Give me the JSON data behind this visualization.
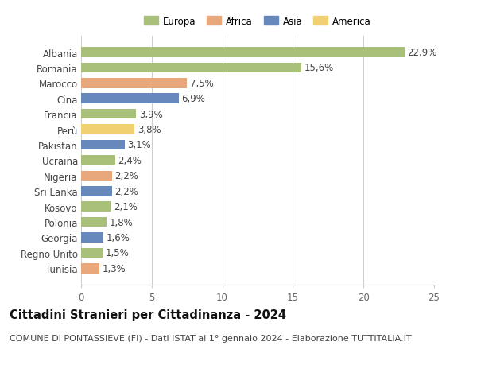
{
  "categories": [
    "Albania",
    "Romania",
    "Marocco",
    "Cina",
    "Francia",
    "Perù",
    "Pakistan",
    "Ucraina",
    "Nigeria",
    "Sri Lanka",
    "Kosovo",
    "Polonia",
    "Georgia",
    "Regno Unito",
    "Tunisia"
  ],
  "values": [
    22.9,
    15.6,
    7.5,
    6.9,
    3.9,
    3.8,
    3.1,
    2.4,
    2.2,
    2.2,
    2.1,
    1.8,
    1.6,
    1.5,
    1.3
  ],
  "labels": [
    "22,9%",
    "15,6%",
    "7,5%",
    "6,9%",
    "3,9%",
    "3,8%",
    "3,1%",
    "2,4%",
    "2,2%",
    "2,2%",
    "2,1%",
    "1,8%",
    "1,6%",
    "1,5%",
    "1,3%"
  ],
  "colors": [
    "#a8c07a",
    "#a8c07a",
    "#e8a87c",
    "#6688bb",
    "#a8c07a",
    "#f0d070",
    "#6688bb",
    "#a8c07a",
    "#e8a87c",
    "#6688bb",
    "#a8c07a",
    "#a8c07a",
    "#6688bb",
    "#a8c07a",
    "#e8a87c"
  ],
  "legend_labels": [
    "Europa",
    "Africa",
    "Asia",
    "America"
  ],
  "legend_colors": [
    "#a8c07a",
    "#e8a87c",
    "#6688bb",
    "#f0d070"
  ],
  "title": "Cittadini Stranieri per Cittadinanza - 2024",
  "subtitle": "COMUNE DI PONTASSIEVE (FI) - Dati ISTAT al 1° gennaio 2024 - Elaborazione TUTTITALIA.IT",
  "xlim": [
    0,
    25
  ],
  "xticks": [
    0,
    5,
    10,
    15,
    20,
    25
  ],
  "bg_color": "#ffffff",
  "grid_color": "#cccccc",
  "bar_height": 0.65,
  "label_fontsize": 8.5,
  "title_fontsize": 10.5,
  "subtitle_fontsize": 8,
  "tick_fontsize": 8.5
}
